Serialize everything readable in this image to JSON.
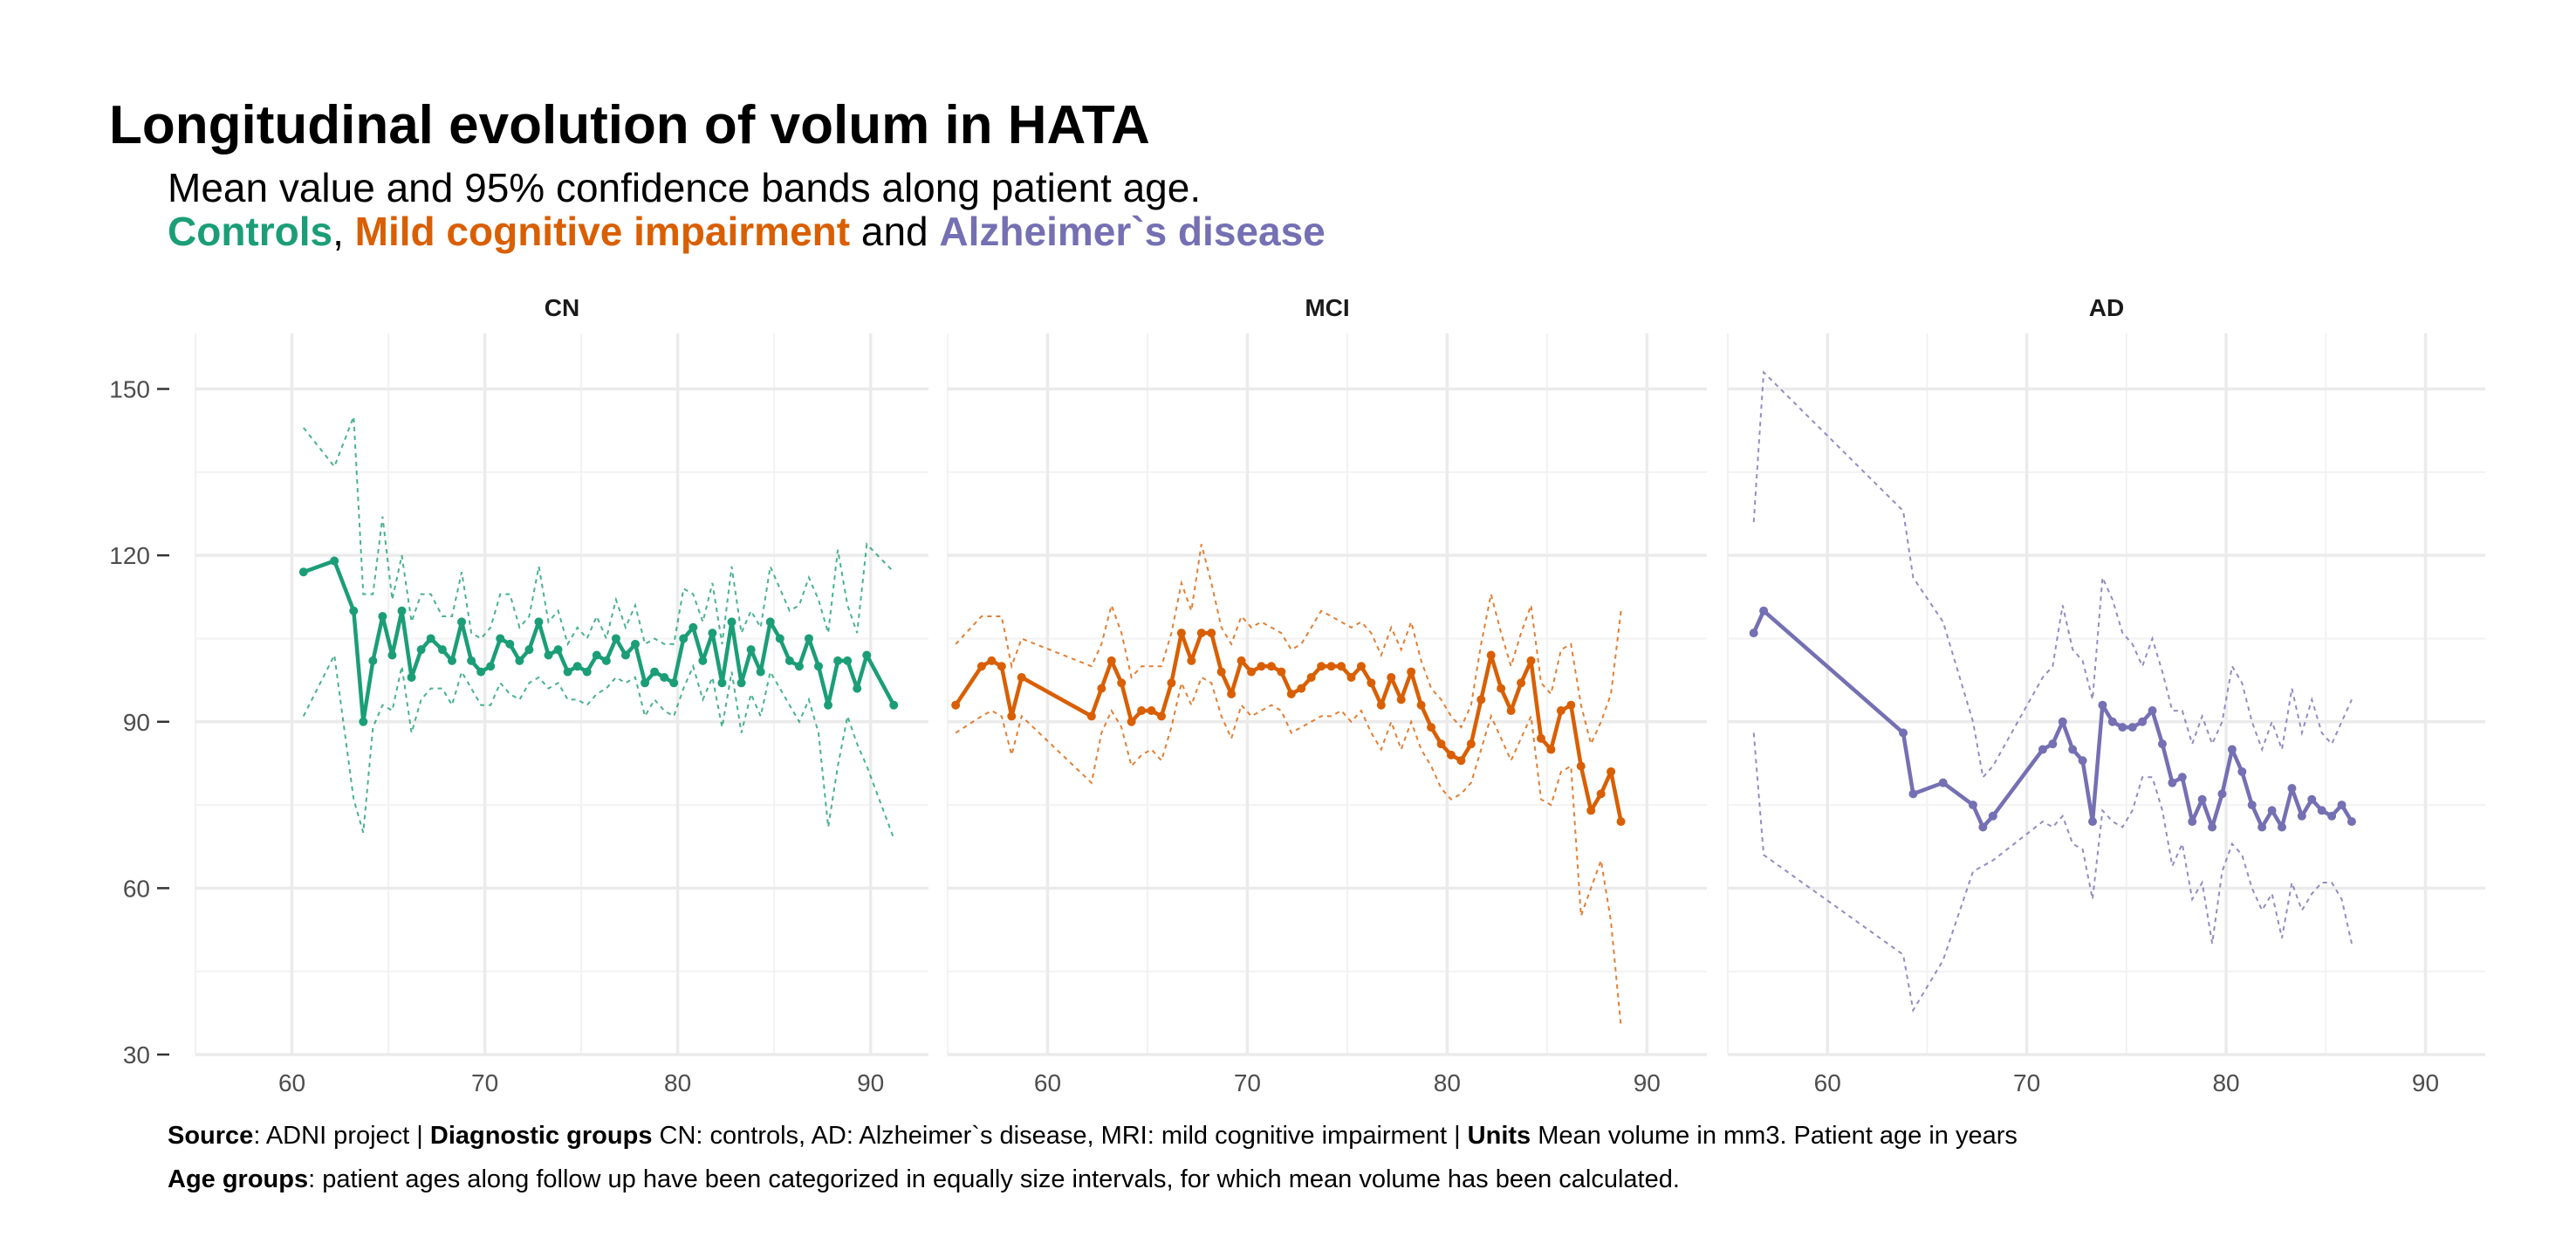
{
  "title": "Longitudinal evolution of volum in HATA",
  "subtitle": "Mean value and 95% confidence bands along patient age.",
  "subtitle_groups": {
    "controls": "Controls",
    "sep1": ", ",
    "mci": "Mild cognitive impairment",
    "sep2": " and ",
    "ad": "Alzheimer`s disease"
  },
  "colors": {
    "CN": "#1b9e77",
    "MCI": "#d95f02",
    "AD": "#7570b3",
    "grid": "#ebebeb",
    "text": "#4d4d4d"
  },
  "caption": {
    "line1": [
      {
        "bold": true,
        "text": "Source"
      },
      {
        "bold": false,
        "text": ": ADNI project | "
      },
      {
        "bold": true,
        "text": "Diagnostic groups"
      },
      {
        "bold": false,
        "text": " CN: controls, AD: Alzheimer`s disease, MRI: mild cognitive impairment | "
      },
      {
        "bold": true,
        "text": "Units"
      },
      {
        "bold": false,
        "text": " Mean volume in mm3. Patient age in years"
      }
    ],
    "line2": [
      {
        "bold": true,
        "text": "Age groups"
      },
      {
        "bold": false,
        "text": ": patient ages along follow up have been categorized in equally size intervals, for which mean volume has been calculated."
      }
    ]
  },
  "chart_data": {
    "type": "line",
    "xlim": [
      55,
      93
    ],
    "ylim": [
      30,
      160
    ],
    "x_ticks": [
      60,
      70,
      80,
      90
    ],
    "y_ticks": [
      30,
      60,
      90,
      120,
      150
    ],
    "grid": true,
    "legend": "none",
    "panels": [
      {
        "name": "CN",
        "color_key": "CN",
        "x": [
          60.6,
          62.2,
          63.2,
          63.7,
          64.2,
          64.7,
          65.2,
          65.7,
          66.2,
          66.7,
          67.2,
          67.8,
          68.3,
          68.8,
          69.3,
          69.8,
          70.3,
          70.8,
          71.3,
          71.8,
          72.3,
          72.8,
          73.3,
          73.8,
          74.3,
          74.8,
          75.3,
          75.8,
          76.3,
          76.8,
          77.3,
          77.8,
          78.3,
          78.8,
          79.3,
          79.8,
          80.3,
          80.8,
          81.3,
          81.8,
          82.3,
          82.8,
          83.3,
          83.8,
          84.3,
          84.8,
          85.3,
          85.8,
          86.3,
          86.8,
          87.3,
          87.8,
          88.3,
          88.8,
          89.3,
          89.8,
          91.2
        ],
        "mean": [
          117,
          119,
          110,
          90,
          101,
          109,
          102,
          110,
          98,
          103,
          105,
          103,
          101,
          108,
          101,
          99,
          100,
          105,
          104,
          101,
          103,
          108,
          102,
          103,
          99,
          100,
          99,
          102,
          101,
          105,
          102,
          104,
          97,
          99,
          98,
          97,
          105,
          107,
          101,
          106,
          97,
          108,
          97,
          103,
          99,
          108,
          105,
          101,
          100,
          105,
          100,
          93,
          101,
          101,
          96,
          102,
          93
        ],
        "upper": [
          143,
          136,
          145,
          113,
          113,
          127,
          112,
          120,
          108,
          113,
          113,
          109,
          109,
          117,
          106,
          105,
          107,
          113,
          113,
          107,
          109,
          118,
          108,
          110,
          104,
          107,
          105,
          109,
          105,
          112,
          107,
          111,
          104,
          105,
          104,
          104,
          114,
          113,
          108,
          115,
          104,
          118,
          106,
          110,
          107,
          118,
          114,
          110,
          111,
          116,
          112,
          106,
          121,
          111,
          106,
          122,
          117
        ],
        "lower": [
          91,
          102,
          76,
          70,
          89,
          93,
          92,
          100,
          88,
          94,
          96,
          96,
          93,
          99,
          96,
          93,
          93,
          97,
          95,
          94,
          97,
          98,
          96,
          97,
          94,
          94,
          93,
          95,
          96,
          98,
          97,
          98,
          91,
          94,
          92,
          91,
          96,
          100,
          94,
          98,
          89,
          99,
          88,
          95,
          91,
          99,
          96,
          93,
          90,
          94,
          88,
          71,
          82,
          91,
          86,
          82,
          69
        ]
      },
      {
        "name": "MCI",
        "color_key": "MCI",
        "x": [
          55.4,
          56.7,
          57.2,
          57.7,
          58.2,
          58.7,
          62.2,
          62.7,
          63.2,
          63.7,
          64.2,
          64.7,
          65.2,
          65.7,
          66.2,
          66.7,
          67.2,
          67.7,
          68.2,
          68.7,
          69.2,
          69.7,
          70.2,
          70.7,
          71.2,
          71.7,
          72.2,
          72.7,
          73.2,
          73.7,
          74.2,
          74.7,
          75.2,
          75.7,
          76.2,
          76.7,
          77.2,
          77.7,
          78.2,
          78.7,
          79.2,
          79.7,
          80.2,
          80.7,
          81.2,
          81.7,
          82.2,
          82.7,
          83.2,
          83.7,
          84.2,
          84.7,
          85.2,
          85.7,
          86.2,
          86.7,
          87.2,
          87.7,
          88.2,
          88.7
        ],
        "mean": [
          93,
          100,
          101,
          100,
          91,
          98,
          91,
          96,
          101,
          97,
          90,
          92,
          92,
          91,
          97,
          106,
          101,
          106,
          106,
          99,
          95,
          101,
          99,
          100,
          100,
          99,
          95,
          96,
          98,
          100,
          100,
          100,
          98,
          100,
          97,
          93,
          98,
          94,
          99,
          93,
          89,
          86,
          84,
          83,
          86,
          94,
          102,
          96,
          92,
          97,
          101,
          87,
          85,
          92,
          93,
          82,
          74,
          77,
          81,
          72
        ],
        "upper": [
          104,
          109,
          109,
          109,
          100,
          105,
          100,
          104,
          111,
          106,
          98,
          100,
          100,
          100,
          106,
          115,
          110,
          122,
          115,
          107,
          104,
          109,
          107,
          108,
          107,
          106,
          103,
          104,
          107,
          110,
          109,
          108,
          107,
          108,
          106,
          102,
          107,
          103,
          108,
          101,
          96,
          94,
          91,
          89,
          93,
          104,
          113,
          106,
          100,
          106,
          111,
          97,
          95,
          103,
          104,
          93,
          86,
          90,
          95,
          110
        ],
        "lower": [
          88,
          91,
          92,
          91,
          84,
          91,
          79,
          88,
          92,
          89,
          82,
          84,
          85,
          83,
          89,
          97,
          93,
          98,
          97,
          91,
          87,
          93,
          91,
          92,
          93,
          92,
          88,
          89,
          90,
          91,
          91,
          92,
          90,
          92,
          88,
          85,
          90,
          85,
          90,
          85,
          82,
          78,
          76,
          77,
          79,
          85,
          91,
          87,
          83,
          87,
          91,
          76,
          75,
          81,
          82,
          55,
          60,
          65,
          54,
          35
        ]
      },
      {
        "name": "AD",
        "color_key": "AD",
        "x": [
          56.3,
          56.8,
          63.8,
          64.3,
          65.8,
          67.3,
          67.8,
          68.3,
          70.8,
          71.3,
          71.8,
          72.3,
          72.8,
          73.3,
          73.8,
          74.3,
          74.8,
          75.3,
          75.8,
          76.3,
          76.8,
          77.3,
          77.8,
          78.3,
          78.8,
          79.3,
          79.8,
          80.3,
          80.8,
          81.3,
          81.8,
          82.3,
          82.8,
          83.3,
          83.8,
          84.3,
          84.8,
          85.3,
          85.8,
          86.3
        ],
        "mean": [
          106,
          110,
          88,
          77,
          79,
          75,
          71,
          73,
          85,
          86,
          90,
          85,
          83,
          72,
          93,
          90,
          89,
          89,
          90,
          92,
          86,
          79,
          80,
          72,
          76,
          71,
          77,
          85,
          81,
          75,
          71,
          74,
          71,
          78,
          73,
          76,
          74,
          73,
          75,
          72
        ],
        "upper": [
          126,
          153,
          128,
          116,
          108,
          90,
          80,
          82,
          98,
          100,
          111,
          103,
          101,
          94,
          116,
          112,
          106,
          104,
          100,
          105,
          99,
          92,
          92,
          86,
          91,
          86,
          90,
          100,
          97,
          90,
          85,
          90,
          85,
          96,
          88,
          94,
          88,
          86,
          90,
          94
        ],
        "lower": [
          88,
          66,
          48,
          38,
          47,
          63,
          64,
          65,
          72,
          71,
          73,
          68,
          67,
          58,
          74,
          72,
          71,
          74,
          80,
          80,
          74,
          64,
          68,
          58,
          61,
          50,
          63,
          68,
          66,
          60,
          56,
          59,
          51,
          61,
          56,
          59,
          61,
          61,
          58,
          50
        ]
      }
    ]
  }
}
